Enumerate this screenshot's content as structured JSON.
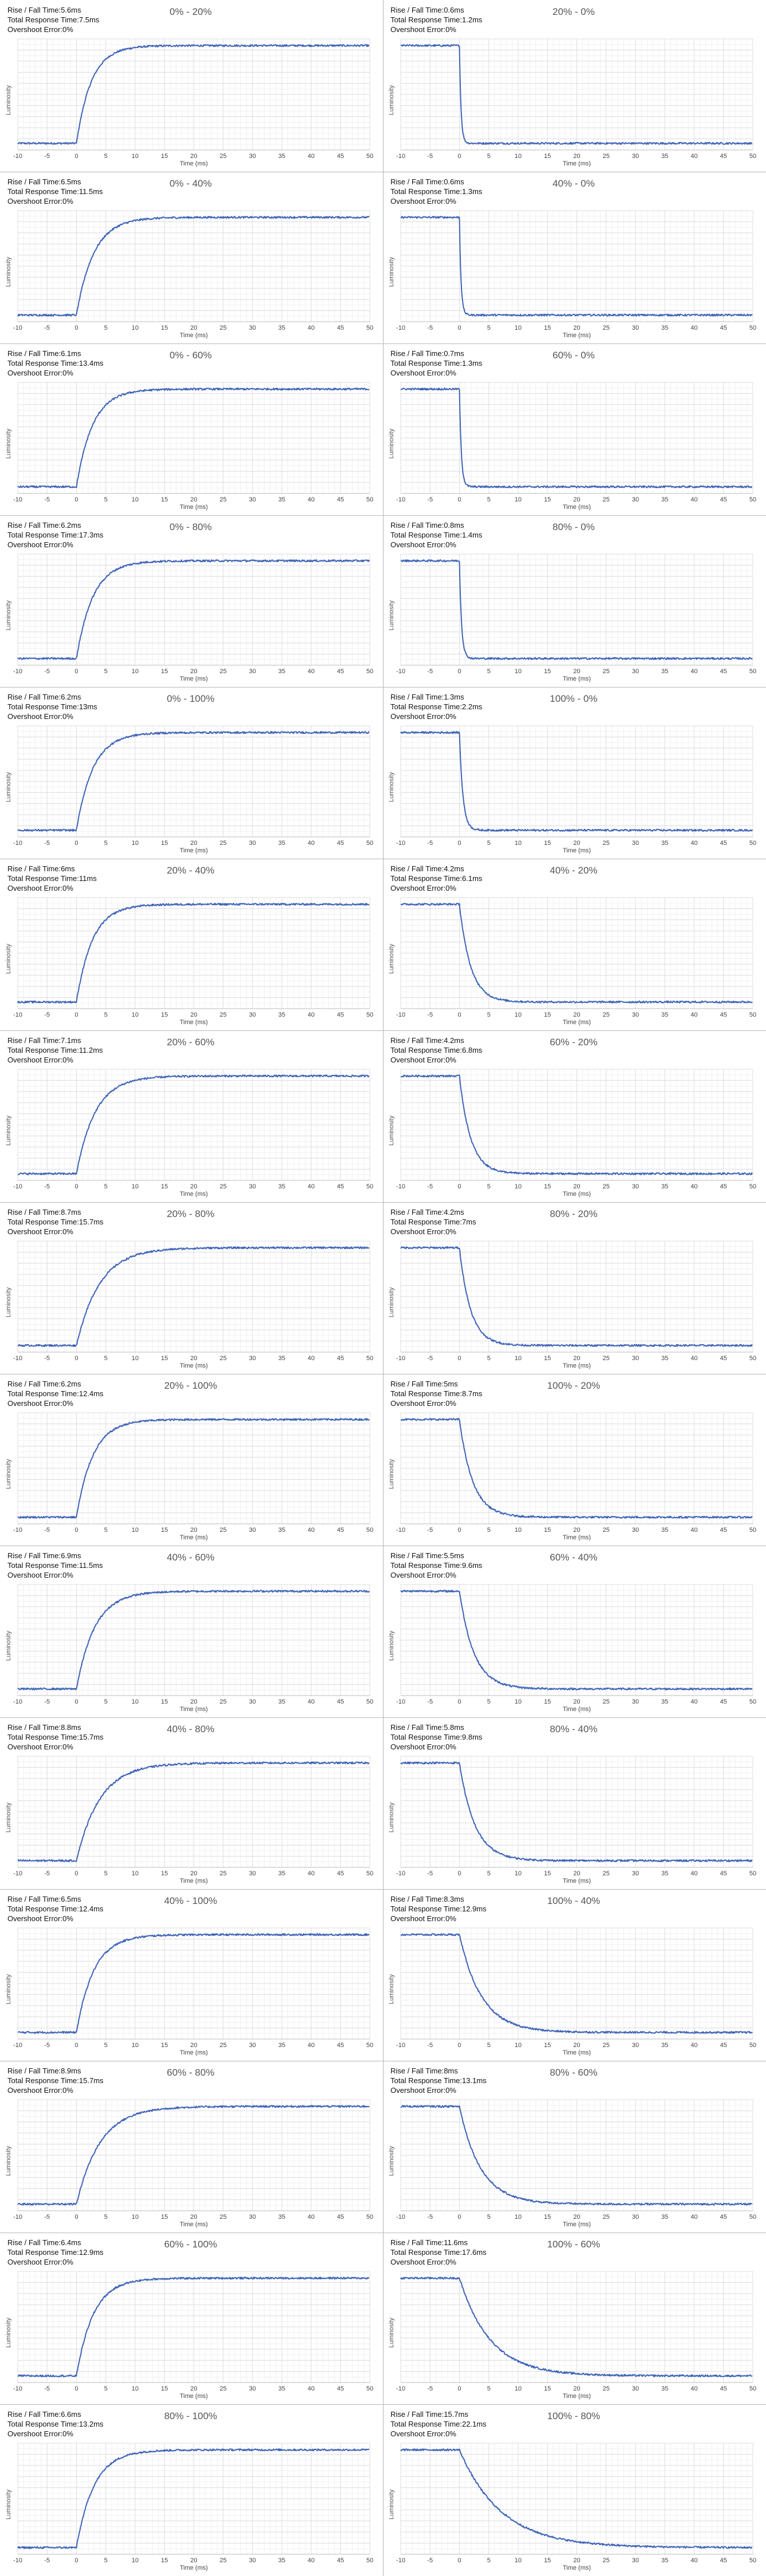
{
  "stats_labels": {
    "time": "Rise / Fall Time:",
    "total": "Total Response Time:",
    "overshoot": "Overshoot Error:"
  },
  "x_axis_label": "Time (ms)",
  "y_axis_label": "Luminosity",
  "line_color": "#3d63b8",
  "chart_data": [
    {
      "type": "line",
      "title": "0% - 20%",
      "rise_fall_time": "5.6ms",
      "total_response_time": "7.5ms",
      "overshoot_error": "0%",
      "xlabel": "Time (ms)",
      "ylabel": "Luminosity",
      "xlim": [
        -10,
        50
      ],
      "xticks": [
        -10,
        -5,
        0,
        5,
        10,
        15,
        20,
        25,
        30,
        35,
        40,
        45,
        50
      ],
      "grid": true,
      "transition": {
        "from": 0,
        "to": 20,
        "direction": "rise",
        "start_ms": 0,
        "duration_ms": 5.6
      }
    },
    {
      "type": "line",
      "title": "20% - 0%",
      "rise_fall_time": "0.6ms",
      "total_response_time": "1.2ms",
      "overshoot_error": "0%",
      "xlabel": "Time (ms)",
      "ylabel": "Luminosity",
      "xlim": [
        -10,
        50
      ],
      "xticks": [
        -10,
        -5,
        0,
        5,
        10,
        15,
        20,
        25,
        30,
        35,
        40,
        45,
        50
      ],
      "grid": true,
      "transition": {
        "from": 20,
        "to": 0,
        "direction": "fall",
        "start_ms": 0,
        "duration_ms": 0.6
      }
    },
    {
      "type": "line",
      "title": "0% - 40%",
      "rise_fall_time": "6.5ms",
      "total_response_time": "11.5ms",
      "overshoot_error": "0%",
      "xlabel": "Time (ms)",
      "ylabel": "Luminosity",
      "xlim": [
        -10,
        50
      ],
      "xticks": [
        -10,
        -5,
        0,
        5,
        10,
        15,
        20,
        25,
        30,
        35,
        40,
        45,
        50
      ],
      "grid": true,
      "transition": {
        "from": 0,
        "to": 40,
        "direction": "rise",
        "start_ms": 0,
        "duration_ms": 6.5
      }
    },
    {
      "type": "line",
      "title": "40% - 0%",
      "rise_fall_time": "0.6ms",
      "total_response_time": "1.3ms",
      "overshoot_error": "0%",
      "xlabel": "Time (ms)",
      "ylabel": "Luminosity",
      "xlim": [
        -10,
        50
      ],
      "xticks": [
        -10,
        -5,
        0,
        5,
        10,
        15,
        20,
        25,
        30,
        35,
        40,
        45,
        50
      ],
      "grid": true,
      "transition": {
        "from": 40,
        "to": 0,
        "direction": "fall",
        "start_ms": 0,
        "duration_ms": 0.6
      }
    },
    {
      "type": "line",
      "title": "0% - 60%",
      "rise_fall_time": "6.1ms",
      "total_response_time": "13.4ms",
      "overshoot_error": "0%",
      "xlabel": "Time (ms)",
      "ylabel": "Luminosity",
      "xlim": [
        -10,
        50
      ],
      "xticks": [
        -10,
        -5,
        0,
        5,
        10,
        15,
        20,
        25,
        30,
        35,
        40,
        45,
        50
      ],
      "grid": true,
      "transition": {
        "from": 0,
        "to": 60,
        "direction": "rise",
        "start_ms": 0,
        "duration_ms": 6.1
      }
    },
    {
      "type": "line",
      "title": "60% - 0%",
      "rise_fall_time": "0.7ms",
      "total_response_time": "1.3ms",
      "overshoot_error": "0%",
      "xlabel": "Time (ms)",
      "ylabel": "Luminosity",
      "xlim": [
        -10,
        50
      ],
      "xticks": [
        -10,
        -5,
        0,
        5,
        10,
        15,
        20,
        25,
        30,
        35,
        40,
        45,
        50
      ],
      "grid": true,
      "transition": {
        "from": 60,
        "to": 0,
        "direction": "fall",
        "start_ms": 0,
        "duration_ms": 0.7
      }
    },
    {
      "type": "line",
      "title": "0% - 80%",
      "rise_fall_time": "6.2ms",
      "total_response_time": "17.3ms",
      "overshoot_error": "0%",
      "xlabel": "Time (ms)",
      "ylabel": "Luminosity",
      "xlim": [
        -10,
        50
      ],
      "xticks": [
        -10,
        -5,
        0,
        5,
        10,
        15,
        20,
        25,
        30,
        35,
        40,
        45,
        50
      ],
      "grid": true,
      "transition": {
        "from": 0,
        "to": 80,
        "direction": "rise",
        "start_ms": 0,
        "duration_ms": 6.2
      }
    },
    {
      "type": "line",
      "title": "80% - 0%",
      "rise_fall_time": "0.8ms",
      "total_response_time": "1.4ms",
      "overshoot_error": "0%",
      "xlabel": "Time (ms)",
      "ylabel": "Luminosity",
      "xlim": [
        -10,
        50
      ],
      "xticks": [
        -10,
        -5,
        0,
        5,
        10,
        15,
        20,
        25,
        30,
        35,
        40,
        45,
        50
      ],
      "grid": true,
      "transition": {
        "from": 80,
        "to": 0,
        "direction": "fall",
        "start_ms": 0,
        "duration_ms": 0.8
      }
    },
    {
      "type": "line",
      "title": "0% - 100%",
      "rise_fall_time": "6.2ms",
      "total_response_time": "13ms",
      "overshoot_error": "0%",
      "xlabel": "Time (ms)",
      "ylabel": "Luminosity",
      "xlim": [
        -10,
        50
      ],
      "xticks": [
        -10,
        -5,
        0,
        5,
        10,
        15,
        20,
        25,
        30,
        35,
        40,
        45,
        50
      ],
      "grid": true,
      "transition": {
        "from": 0,
        "to": 100,
        "direction": "rise",
        "start_ms": 0,
        "duration_ms": 6.2
      }
    },
    {
      "type": "line",
      "title": "100% - 0%",
      "rise_fall_time": "1.3ms",
      "total_response_time": "2.2ms",
      "overshoot_error": "0%",
      "xlabel": "Time (ms)",
      "ylabel": "Luminosity",
      "xlim": [
        -10,
        50
      ],
      "xticks": [
        -10,
        -5,
        0,
        5,
        10,
        15,
        20,
        25,
        30,
        35,
        40,
        45,
        50
      ],
      "grid": true,
      "transition": {
        "from": 100,
        "to": 0,
        "direction": "fall",
        "start_ms": 0,
        "duration_ms": 1.3
      }
    },
    {
      "type": "line",
      "title": "20% - 40%",
      "rise_fall_time": "6ms",
      "total_response_time": "11ms",
      "overshoot_error": "0%",
      "xlabel": "Time (ms)",
      "ylabel": "Luminosity",
      "xlim": [
        -10,
        50
      ],
      "xticks": [
        -10,
        -5,
        0,
        5,
        10,
        15,
        20,
        25,
        30,
        35,
        40,
        45,
        50
      ],
      "grid": true,
      "transition": {
        "from": 20,
        "to": 40,
        "direction": "rise",
        "start_ms": 0,
        "duration_ms": 6
      }
    },
    {
      "type": "line",
      "title": "40% - 20%",
      "rise_fall_time": "4.2ms",
      "total_response_time": "6.1ms",
      "overshoot_error": "0%",
      "xlabel": "Time (ms)",
      "ylabel": "Luminosity",
      "xlim": [
        -10,
        50
      ],
      "xticks": [
        -10,
        -5,
        0,
        5,
        10,
        15,
        20,
        25,
        30,
        35,
        40,
        45,
        50
      ],
      "grid": true,
      "transition": {
        "from": 40,
        "to": 20,
        "direction": "fall",
        "start_ms": 0,
        "duration_ms": 4.2
      }
    },
    {
      "type": "line",
      "title": "20% - 60%",
      "rise_fall_time": "7.1ms",
      "total_response_time": "11.2ms",
      "overshoot_error": "0%",
      "xlabel": "Time (ms)",
      "ylabel": "Luminosity",
      "xlim": [
        -10,
        50
      ],
      "xticks": [
        -10,
        -5,
        0,
        5,
        10,
        15,
        20,
        25,
        30,
        35,
        40,
        45,
        50
      ],
      "grid": true,
      "transition": {
        "from": 20,
        "to": 60,
        "direction": "rise",
        "start_ms": 0,
        "duration_ms": 7.1
      }
    },
    {
      "type": "line",
      "title": "60% - 20%",
      "rise_fall_time": "4.2ms",
      "total_response_time": "6.8ms",
      "overshoot_error": "0%",
      "xlabel": "Time (ms)",
      "ylabel": "Luminosity",
      "xlim": [
        -10,
        50
      ],
      "xticks": [
        -10,
        -5,
        0,
        5,
        10,
        15,
        20,
        25,
        30,
        35,
        40,
        45,
        50
      ],
      "grid": true,
      "transition": {
        "from": 60,
        "to": 20,
        "direction": "fall",
        "start_ms": 0,
        "duration_ms": 4.2
      }
    },
    {
      "type": "line",
      "title": "20% - 80%",
      "rise_fall_time": "8.7ms",
      "total_response_time": "15.7ms",
      "overshoot_error": "0%",
      "xlabel": "Time (ms)",
      "ylabel": "Luminosity",
      "xlim": [
        -10,
        50
      ],
      "xticks": [
        -10,
        -5,
        0,
        5,
        10,
        15,
        20,
        25,
        30,
        35,
        40,
        45,
        50
      ],
      "grid": true,
      "transition": {
        "from": 20,
        "to": 80,
        "direction": "rise",
        "start_ms": 0,
        "duration_ms": 8.7
      }
    },
    {
      "type": "line",
      "title": "80% - 20%",
      "rise_fall_time": "4.2ms",
      "total_response_time": "7ms",
      "overshoot_error": "0%",
      "xlabel": "Time (ms)",
      "ylabel": "Luminosity",
      "xlim": [
        -10,
        50
      ],
      "xticks": [
        -10,
        -5,
        0,
        5,
        10,
        15,
        20,
        25,
        30,
        35,
        40,
        45,
        50
      ],
      "grid": true,
      "transition": {
        "from": 80,
        "to": 20,
        "direction": "fall",
        "start_ms": 0,
        "duration_ms": 4.2
      }
    },
    {
      "type": "line",
      "title": "20% - 100%",
      "rise_fall_time": "6.2ms",
      "total_response_time": "12.4ms",
      "overshoot_error": "0%",
      "xlabel": "Time (ms)",
      "ylabel": "Luminosity",
      "xlim": [
        -10,
        50
      ],
      "xticks": [
        -10,
        -5,
        0,
        5,
        10,
        15,
        20,
        25,
        30,
        35,
        40,
        45,
        50
      ],
      "grid": true,
      "transition": {
        "from": 20,
        "to": 100,
        "direction": "rise",
        "start_ms": 0,
        "duration_ms": 6.2
      }
    },
    {
      "type": "line",
      "title": "100% - 20%",
      "rise_fall_time": "5ms",
      "total_response_time": "8.7ms",
      "overshoot_error": "0%",
      "xlabel": "Time (ms)",
      "ylabel": "Luminosity",
      "xlim": [
        -10,
        50
      ],
      "xticks": [
        -10,
        -5,
        0,
        5,
        10,
        15,
        20,
        25,
        30,
        35,
        40,
        45,
        50
      ],
      "grid": true,
      "transition": {
        "from": 100,
        "to": 20,
        "direction": "fall",
        "start_ms": 0,
        "duration_ms": 5
      }
    },
    {
      "type": "line",
      "title": "40% - 60%",
      "rise_fall_time": "6.9ms",
      "total_response_time": "11.5ms",
      "overshoot_error": "0%",
      "xlabel": "Time (ms)",
      "ylabel": "Luminosity",
      "xlim": [
        -10,
        50
      ],
      "xticks": [
        -10,
        -5,
        0,
        5,
        10,
        15,
        20,
        25,
        30,
        35,
        40,
        45,
        50
      ],
      "grid": true,
      "transition": {
        "from": 40,
        "to": 60,
        "direction": "rise",
        "start_ms": 0,
        "duration_ms": 6.9
      }
    },
    {
      "type": "line",
      "title": "60% - 40%",
      "rise_fall_time": "5.5ms",
      "total_response_time": "9.6ms",
      "overshoot_error": "0%",
      "xlabel": "Time (ms)",
      "ylabel": "Luminosity",
      "xlim": [
        -10,
        50
      ],
      "xticks": [
        -10,
        -5,
        0,
        5,
        10,
        15,
        20,
        25,
        30,
        35,
        40,
        45,
        50
      ],
      "grid": true,
      "transition": {
        "from": 60,
        "to": 40,
        "direction": "fall",
        "start_ms": 0,
        "duration_ms": 5.5
      }
    },
    {
      "type": "line",
      "title": "40% - 80%",
      "rise_fall_time": "8.8ms",
      "total_response_time": "15.7ms",
      "overshoot_error": "0%",
      "xlabel": "Time (ms)",
      "ylabel": "Luminosity",
      "xlim": [
        -10,
        50
      ],
      "xticks": [
        -10,
        -5,
        0,
        5,
        10,
        15,
        20,
        25,
        30,
        35,
        40,
        45,
        50
      ],
      "grid": true,
      "transition": {
        "from": 40,
        "to": 80,
        "direction": "rise",
        "start_ms": 0,
        "duration_ms": 8.8
      }
    },
    {
      "type": "line",
      "title": "80% - 40%",
      "rise_fall_time": "5.8ms",
      "total_response_time": "9.8ms",
      "overshoot_error": "0%",
      "xlabel": "Time (ms)",
      "ylabel": "Luminosity",
      "xlim": [
        -10,
        50
      ],
      "xticks": [
        -10,
        -5,
        0,
        5,
        10,
        15,
        20,
        25,
        30,
        35,
        40,
        45,
        50
      ],
      "grid": true,
      "transition": {
        "from": 80,
        "to": 40,
        "direction": "fall",
        "start_ms": 0,
        "duration_ms": 5.8
      }
    },
    {
      "type": "line",
      "title": "40% - 100%",
      "rise_fall_time": "6.5ms",
      "total_response_time": "12.4ms",
      "overshoot_error": "0%",
      "xlabel": "Time (ms)",
      "ylabel": "Luminosity",
      "xlim": [
        -10,
        50
      ],
      "xticks": [
        -10,
        -5,
        0,
        5,
        10,
        15,
        20,
        25,
        30,
        35,
        40,
        45,
        50
      ],
      "grid": true,
      "transition": {
        "from": 40,
        "to": 100,
        "direction": "rise",
        "start_ms": 0,
        "duration_ms": 6.5
      }
    },
    {
      "type": "line",
      "title": "100% - 40%",
      "rise_fall_time": "8.3ms",
      "total_response_time": "12.9ms",
      "overshoot_error": "0%",
      "xlabel": "Time (ms)",
      "ylabel": "Luminosity",
      "xlim": [
        -10,
        50
      ],
      "xticks": [
        -10,
        -5,
        0,
        5,
        10,
        15,
        20,
        25,
        30,
        35,
        40,
        45,
        50
      ],
      "grid": true,
      "transition": {
        "from": 100,
        "to": 40,
        "direction": "fall",
        "start_ms": 0,
        "duration_ms": 8.3
      }
    },
    {
      "type": "line",
      "title": "60% - 80%",
      "rise_fall_time": "8.9ms",
      "total_response_time": "15.7ms",
      "overshoot_error": "0%",
      "xlabel": "Time (ms)",
      "ylabel": "Luminosity",
      "xlim": [
        -10,
        50
      ],
      "xticks": [
        -10,
        -5,
        0,
        5,
        10,
        15,
        20,
        25,
        30,
        35,
        40,
        45,
        50
      ],
      "grid": true,
      "transition": {
        "from": 60,
        "to": 80,
        "direction": "rise",
        "start_ms": 0,
        "duration_ms": 8.9
      }
    },
    {
      "type": "line",
      "title": "80% - 60%",
      "rise_fall_time": "8ms",
      "total_response_time": "13.1ms",
      "overshoot_error": "0%",
      "xlabel": "Time (ms)",
      "ylabel": "Luminosity",
      "xlim": [
        -10,
        50
      ],
      "xticks": [
        -10,
        -5,
        0,
        5,
        10,
        15,
        20,
        25,
        30,
        35,
        40,
        45,
        50
      ],
      "grid": true,
      "transition": {
        "from": 80,
        "to": 60,
        "direction": "fall",
        "start_ms": 0,
        "duration_ms": 8
      }
    },
    {
      "type": "line",
      "title": "60% - 100%",
      "rise_fall_time": "6.4ms",
      "total_response_time": "12.9ms",
      "overshoot_error": "0%",
      "xlabel": "Time (ms)",
      "ylabel": "Luminosity",
      "xlim": [
        -10,
        50
      ],
      "xticks": [
        -10,
        -5,
        0,
        5,
        10,
        15,
        20,
        25,
        30,
        35,
        40,
        45,
        50
      ],
      "grid": true,
      "transition": {
        "from": 60,
        "to": 100,
        "direction": "rise",
        "start_ms": 0,
        "duration_ms": 6.4
      }
    },
    {
      "type": "line",
      "title": "100% - 60%",
      "rise_fall_time": "11.6ms",
      "total_response_time": "17.6ms",
      "overshoot_error": "0%",
      "xlabel": "Time (ms)",
      "ylabel": "Luminosity",
      "xlim": [
        -10,
        50
      ],
      "xticks": [
        -10,
        -5,
        0,
        5,
        10,
        15,
        20,
        25,
        30,
        35,
        40,
        45,
        50
      ],
      "grid": true,
      "transition": {
        "from": 100,
        "to": 60,
        "direction": "fall",
        "start_ms": 0,
        "duration_ms": 11.6
      }
    },
    {
      "type": "line",
      "title": "80% - 100%",
      "rise_fall_time": "6.6ms",
      "total_response_time": "13.2ms",
      "overshoot_error": "0%",
      "xlabel": "Time (ms)",
      "ylabel": "Luminosity",
      "xlim": [
        -10,
        50
      ],
      "xticks": [
        -10,
        -5,
        0,
        5,
        10,
        15,
        20,
        25,
        30,
        35,
        40,
        45,
        50
      ],
      "grid": true,
      "transition": {
        "from": 80,
        "to": 100,
        "direction": "rise",
        "start_ms": 0,
        "duration_ms": 6.6
      }
    },
    {
      "type": "line",
      "title": "100% - 80%",
      "rise_fall_time": "15.7ms",
      "total_response_time": "22.1ms",
      "overshoot_error": "0%",
      "xlabel": "Time (ms)",
      "ylabel": "Luminosity",
      "xlim": [
        -10,
        50
      ],
      "xticks": [
        -10,
        -5,
        0,
        5,
        10,
        15,
        20,
        25,
        30,
        35,
        40,
        45,
        50
      ],
      "grid": true,
      "transition": {
        "from": 100,
        "to": 80,
        "direction": "fall",
        "start_ms": 0,
        "duration_ms": 15.7
      }
    }
  ]
}
